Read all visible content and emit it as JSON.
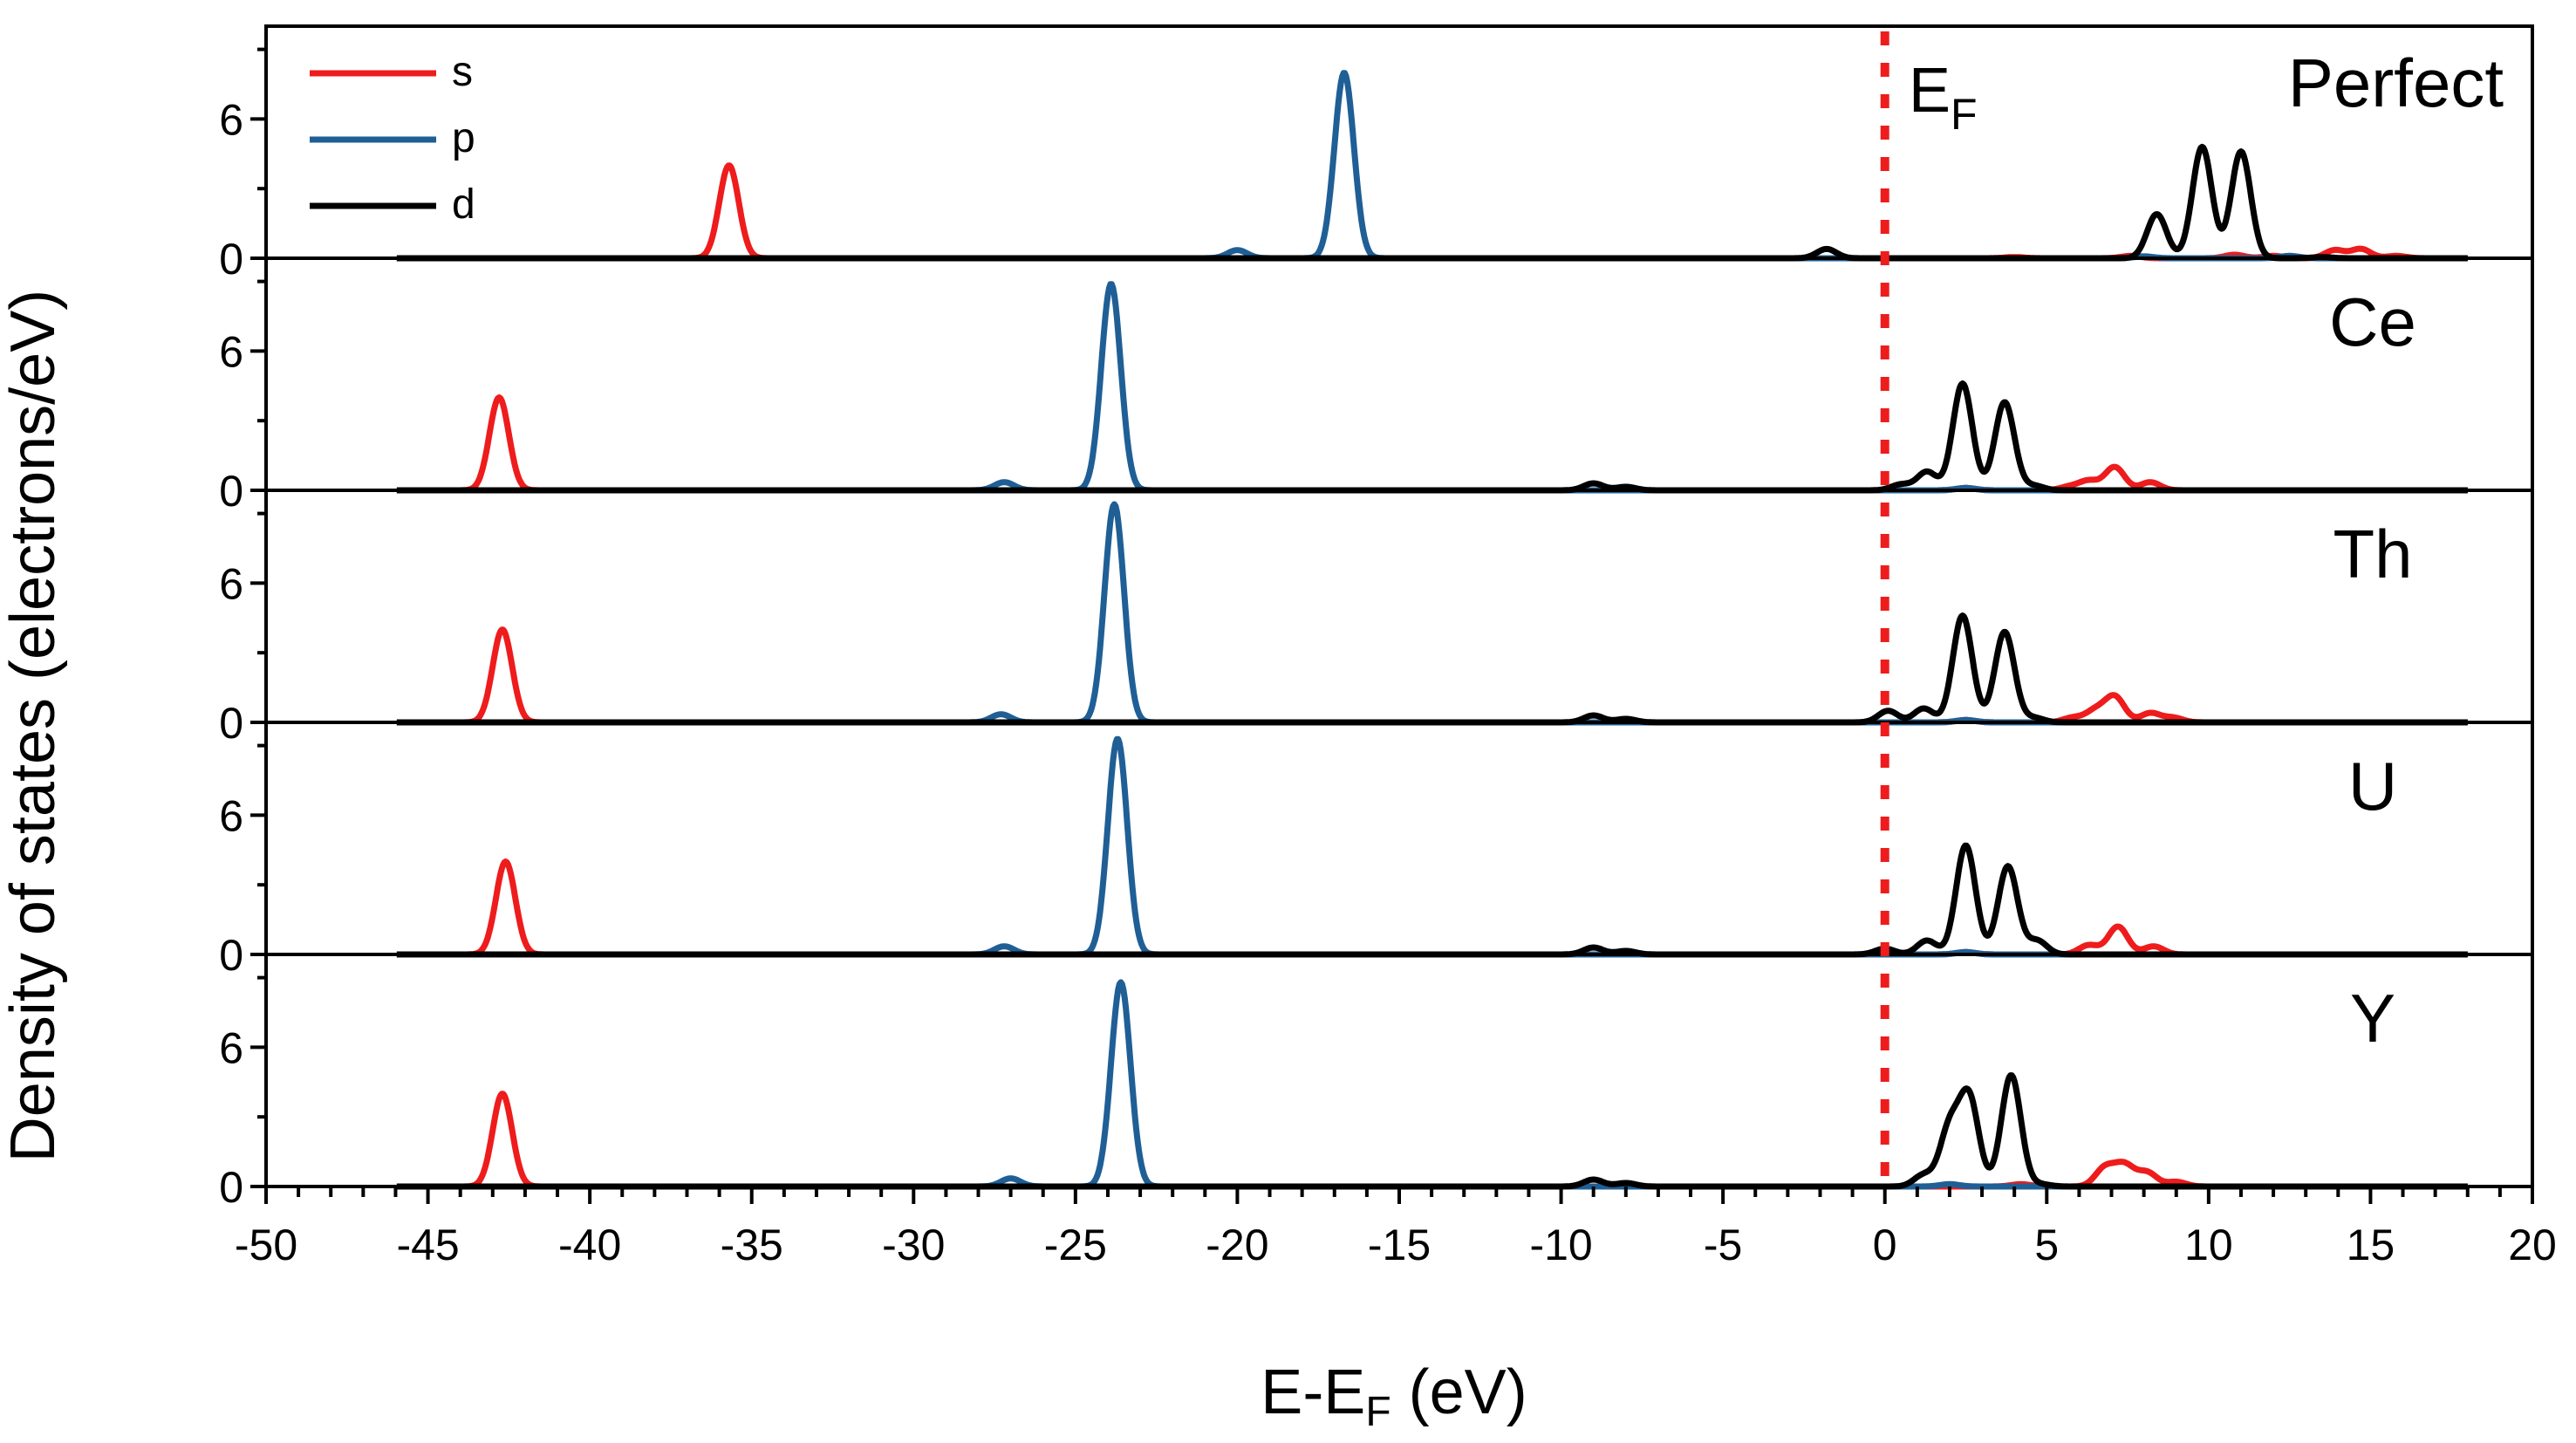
{
  "chart_data": {
    "type": "line",
    "xlabel": "E-E",
    "xlabel_sub": "F",
    "xlabel_unit": " (eV)",
    "ylabel": "Density of states (electrons/eV)",
    "xlim": [
      -50,
      20
    ],
    "x_ticks": [
      -50,
      -45,
      -40,
      -35,
      -30,
      -25,
      -20,
      -15,
      -10,
      -5,
      0,
      5,
      10,
      15,
      20
    ],
    "ylim": [
      0,
      10
    ],
    "y_ticks": [
      0,
      6
    ],
    "fermi_label": "E",
    "fermi_label_sub": "F",
    "fermi_x": 0,
    "legend": {
      "placement": "top-left",
      "entries": [
        {
          "label": "s",
          "color": "#ee1c1c"
        },
        {
          "label": "p",
          "color": "#1f5f96"
        },
        {
          "label": "d",
          "color": "#000000"
        }
      ]
    },
    "colors": {
      "s": "#ee1c1c",
      "p": "#1f5f96",
      "d": "#000000",
      "fermi": "#ee1c1c"
    },
    "panels": [
      {
        "name": "Perfect",
        "s": [
          [
            -35.7,
            4.0
          ],
          [
            4.0,
            0.05
          ],
          [
            7.6,
            0.1
          ],
          [
            10.8,
            0.15
          ],
          [
            12.0,
            0.1
          ],
          [
            13.9,
            0.35
          ],
          [
            14.7,
            0.4
          ],
          [
            15.8,
            0.1
          ]
        ],
        "p": [
          [
            -20.0,
            0.35
          ],
          [
            -16.7,
            8.0
          ],
          [
            8.0,
            0.08
          ],
          [
            12.5,
            0.1
          ]
        ],
        "d": [
          [
            -1.8,
            0.4
          ],
          [
            8.4,
            1.9
          ],
          [
            9.8,
            4.8
          ],
          [
            11.0,
            4.6
          ],
          [
            13.5,
            0.05
          ]
        ]
      },
      {
        "name": "Ce",
        "s": [
          [
            -42.8,
            4.0
          ],
          [
            2.5,
            0.1
          ],
          [
            5.7,
            0.15
          ],
          [
            6.3,
            0.4
          ],
          [
            7.1,
            1.0
          ],
          [
            8.2,
            0.35
          ]
        ],
        "p": [
          [
            -27.2,
            0.35
          ],
          [
            -23.9,
            8.9
          ],
          [
            2.5,
            0.1
          ]
        ],
        "d": [
          [
            -9.0,
            0.3
          ],
          [
            -8.0,
            0.15
          ],
          [
            0.5,
            0.25
          ],
          [
            1.3,
            0.8
          ],
          [
            2.4,
            4.6
          ],
          [
            3.7,
            3.8
          ],
          [
            4.6,
            0.2
          ]
        ]
      },
      {
        "name": "Th",
        "s": [
          [
            -42.7,
            4.0
          ],
          [
            2.5,
            0.1
          ],
          [
            5.8,
            0.2
          ],
          [
            6.5,
            0.5
          ],
          [
            7.1,
            1.1
          ],
          [
            8.2,
            0.4
          ],
          [
            8.9,
            0.2
          ]
        ],
        "p": [
          [
            -27.3,
            0.35
          ],
          [
            -23.8,
            9.4
          ],
          [
            2.5,
            0.1
          ]
        ],
        "d": [
          [
            -9.0,
            0.3
          ],
          [
            -8.0,
            0.15
          ],
          [
            0.1,
            0.5
          ],
          [
            1.2,
            0.6
          ],
          [
            2.4,
            4.6
          ],
          [
            3.7,
            3.9
          ],
          [
            4.6,
            0.2
          ]
        ]
      },
      {
        "name": "U",
        "s": [
          [
            -42.6,
            4.0
          ],
          [
            2.5,
            0.1
          ],
          [
            6.3,
            0.4
          ],
          [
            7.2,
            1.2
          ],
          [
            8.3,
            0.35
          ]
        ],
        "p": [
          [
            -27.2,
            0.35
          ],
          [
            -23.7,
            9.3
          ],
          [
            2.5,
            0.1
          ]
        ],
        "d": [
          [
            -9.0,
            0.3
          ],
          [
            -8.0,
            0.15
          ],
          [
            0.0,
            0.25
          ],
          [
            1.3,
            0.6
          ],
          [
            2.5,
            4.7
          ],
          [
            3.8,
            3.8
          ],
          [
            4.7,
            0.6
          ]
        ]
      },
      {
        "name": "Y",
        "s": [
          [
            -42.7,
            4.0
          ],
          [
            4.2,
            0.1
          ],
          [
            6.8,
            0.8
          ],
          [
            7.4,
            0.9
          ],
          [
            8.1,
            0.6
          ],
          [
            9.0,
            0.2
          ]
        ],
        "p": [
          [
            -27.0,
            0.35
          ],
          [
            -23.6,
            8.8
          ],
          [
            2.0,
            0.1
          ]
        ],
        "d": [
          [
            -9.0,
            0.3
          ],
          [
            -8.0,
            0.15
          ],
          [
            1.2,
            0.5
          ],
          [
            2.0,
            2.5
          ],
          [
            2.6,
            3.8
          ],
          [
            3.9,
            4.8
          ],
          [
            4.8,
            0.1
          ]
        ]
      }
    ]
  }
}
